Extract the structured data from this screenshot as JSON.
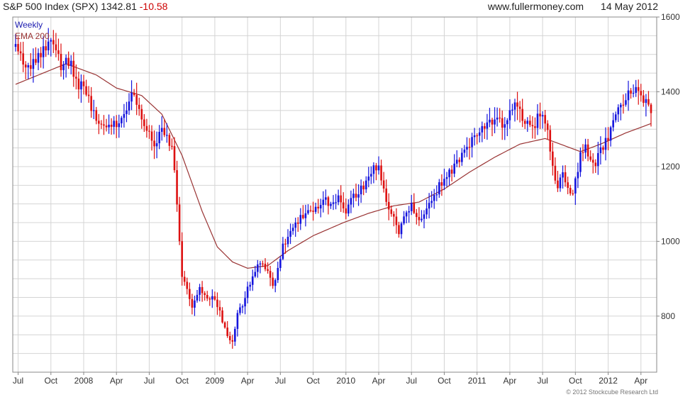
{
  "header": {
    "index_label": "S&P 500 Index (SPX)",
    "last_value": "1342.81",
    "change": "-10.58",
    "website": "www.fullermoney.com",
    "date": "14 May 2012"
  },
  "credit": "© 2012 Stockcube Research Ltd",
  "colors": {
    "up": "#1515dd",
    "down": "#dd1111",
    "ema": "#993333",
    "grid": "#d4d4d4"
  },
  "chart_data": {
    "type": "candlestick",
    "title": "S&P 500 Index (SPX)",
    "legend": [
      {
        "name": "Weekly",
        "color": "#1c1cb0"
      },
      {
        "name": "EMA 200",
        "color": "#993333"
      }
    ],
    "legend_position": "top-left",
    "y_axis_side": "right",
    "ylim": [
      650,
      1600
    ],
    "y_ticks": [
      800,
      1000,
      1200,
      1400,
      1600
    ],
    "x_ticks": [
      {
        "label": "Jul",
        "at": 1
      },
      {
        "label": "Oct",
        "at": 14
      },
      {
        "label": "2008",
        "at": 27
      },
      {
        "label": "Apr",
        "at": 40
      },
      {
        "label": "Jul",
        "at": 53
      },
      {
        "label": "Oct",
        "at": 66
      },
      {
        "label": "2009",
        "at": 79
      },
      {
        "label": "Apr",
        "at": 92
      },
      {
        "label": "Jul",
        "at": 105
      },
      {
        "label": "Oct",
        "at": 118
      },
      {
        "label": "2010",
        "at": 131
      },
      {
        "label": "Apr",
        "at": 144
      },
      {
        "label": "Jul",
        "at": 157
      },
      {
        "label": "Oct",
        "at": 170
      },
      {
        "label": "2011",
        "at": 183
      },
      {
        "label": "Apr",
        "at": 196
      },
      {
        "label": "Jul",
        "at": 209
      },
      {
        "label": "Oct",
        "at": 222
      },
      {
        "label": "2012",
        "at": 235
      },
      {
        "label": "Apr",
        "at": 248
      }
    ],
    "grid": true,
    "close_anchors": [
      [
        0,
        1530
      ],
      [
        5,
        1460
      ],
      [
        14,
        1540
      ],
      [
        18,
        1470
      ],
      [
        22,
        1480
      ],
      [
        24,
        1420
      ],
      [
        27,
        1410
      ],
      [
        32,
        1330
      ],
      [
        38,
        1300
      ],
      [
        44,
        1360
      ],
      [
        47,
        1400
      ],
      [
        50,
        1320
      ],
      [
        55,
        1260
      ],
      [
        58,
        1290
      ],
      [
        62,
        1260
      ],
      [
        64,
        1100
      ],
      [
        66,
        900
      ],
      [
        68,
        880
      ],
      [
        70,
        820
      ],
      [
        73,
        880
      ],
      [
        76,
        840
      ],
      [
        79,
        850
      ],
      [
        84,
        745
      ],
      [
        86,
        735
      ],
      [
        88,
        810
      ],
      [
        90,
        830
      ],
      [
        92,
        870
      ],
      [
        94,
        905
      ],
      [
        96,
        940
      ],
      [
        100,
        920
      ],
      [
        102,
        880
      ],
      [
        104,
        930
      ],
      [
        106,
        990
      ],
      [
        110,
        1030
      ],
      [
        114,
        1070
      ],
      [
        118,
        1090
      ],
      [
        122,
        1110
      ],
      [
        126,
        1100
      ],
      [
        128,
        1130
      ],
      [
        131,
        1080
      ],
      [
        134,
        1120
      ],
      [
        138,
        1150
      ],
      [
        142,
        1200
      ],
      [
        144,
        1190
      ],
      [
        147,
        1100
      ],
      [
        149,
        1080
      ],
      [
        152,
        1030
      ],
      [
        155,
        1070
      ],
      [
        157,
        1100
      ],
      [
        160,
        1050
      ],
      [
        162,
        1080
      ],
      [
        165,
        1110
      ],
      [
        168,
        1150
      ],
      [
        170,
        1170
      ],
      [
        174,
        1200
      ],
      [
        176,
        1220
      ],
      [
        179,
        1250
      ],
      [
        183,
        1280
      ],
      [
        187,
        1320
      ],
      [
        190,
        1330
      ],
      [
        193,
        1310
      ],
      [
        196,
        1340
      ],
      [
        198,
        1360
      ],
      [
        202,
        1320
      ],
      [
        205,
        1300
      ],
      [
        207,
        1330
      ],
      [
        209,
        1340
      ],
      [
        211,
        1300
      ],
      [
        213,
        1200
      ],
      [
        215,
        1140
      ],
      [
        217,
        1180
      ],
      [
        219,
        1150
      ],
      [
        221,
        1120
      ],
      [
        224,
        1230
      ],
      [
        226,
        1250
      ],
      [
        228,
        1220
      ],
      [
        230,
        1210
      ],
      [
        232,
        1240
      ],
      [
        235,
        1280
      ],
      [
        238,
        1340
      ],
      [
        241,
        1370
      ],
      [
        244,
        1400
      ],
      [
        247,
        1405
      ],
      [
        249,
        1385
      ],
      [
        251,
        1360
      ],
      [
        252,
        1343
      ]
    ],
    "ema_200": [
      [
        0,
        1420
      ],
      [
        20,
        1475
      ],
      [
        32,
        1445
      ],
      [
        40,
        1410
      ],
      [
        50,
        1390
      ],
      [
        58,
        1340
      ],
      [
        66,
        1230
      ],
      [
        74,
        1080
      ],
      [
        80,
        985
      ],
      [
        86,
        945
      ],
      [
        92,
        928
      ],
      [
        100,
        935
      ],
      [
        108,
        975
      ],
      [
        118,
        1015
      ],
      [
        130,
        1050
      ],
      [
        140,
        1075
      ],
      [
        150,
        1095
      ],
      [
        160,
        1105
      ],
      [
        170,
        1140
      ],
      [
        180,
        1185
      ],
      [
        190,
        1225
      ],
      [
        200,
        1260
      ],
      [
        210,
        1275
      ],
      [
        218,
        1255
      ],
      [
        224,
        1240
      ],
      [
        232,
        1260
      ],
      [
        242,
        1290
      ],
      [
        252,
        1315
      ]
    ],
    "x_count": 253
  }
}
